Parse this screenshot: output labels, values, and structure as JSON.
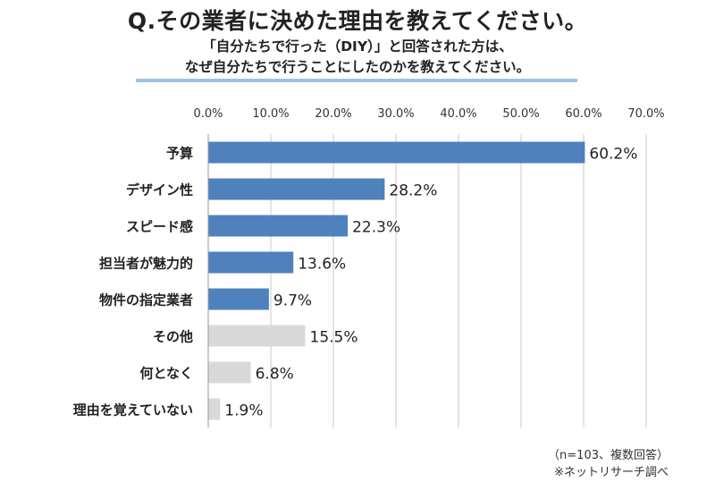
{
  "title": "Q.その業者に決めた理由を教えてください。",
  "subtitle_line1": "「自分たちで行った（DIY）」と回答された方は、",
  "subtitle_line2": "なぜ自分たちで行うことにしたのかを教えてください。",
  "note_sample": "（n=103、複数回答）",
  "note_source": "※ネットリサーチ調べ",
  "colors": {
    "primary": "#4f81bd",
    "secondary": "#d9d9d9",
    "underline": "#9dc3e6"
  },
  "chart_data": {
    "type": "bar",
    "orientation": "horizontal",
    "categories": [
      "予算",
      "デザイン性",
      "スピード感",
      "担当者が魅力的",
      "物件の指定業者",
      "その他",
      "何となく",
      "理由を覚えていない"
    ],
    "values": [
      60.2,
      28.2,
      22.3,
      13.6,
      9.7,
      15.5,
      6.8,
      1.9
    ],
    "value_labels": [
      "60.2%",
      "28.2%",
      "22.3%",
      "13.6%",
      "9.7%",
      "15.5%",
      "6.8%",
      "1.9%"
    ],
    "bar_colors": [
      "#4f81bd",
      "#4f81bd",
      "#4f81bd",
      "#4f81bd",
      "#4f81bd",
      "#d9d9d9",
      "#d9d9d9",
      "#d9d9d9"
    ],
    "xlim": [
      0,
      70
    ],
    "xticks": [
      "0.0%",
      "10.0%",
      "20.0%",
      "30.0%",
      "40.0%",
      "50.0%",
      "60.0%",
      "70.0%"
    ],
    "grid": true,
    "axis_position": "top"
  }
}
